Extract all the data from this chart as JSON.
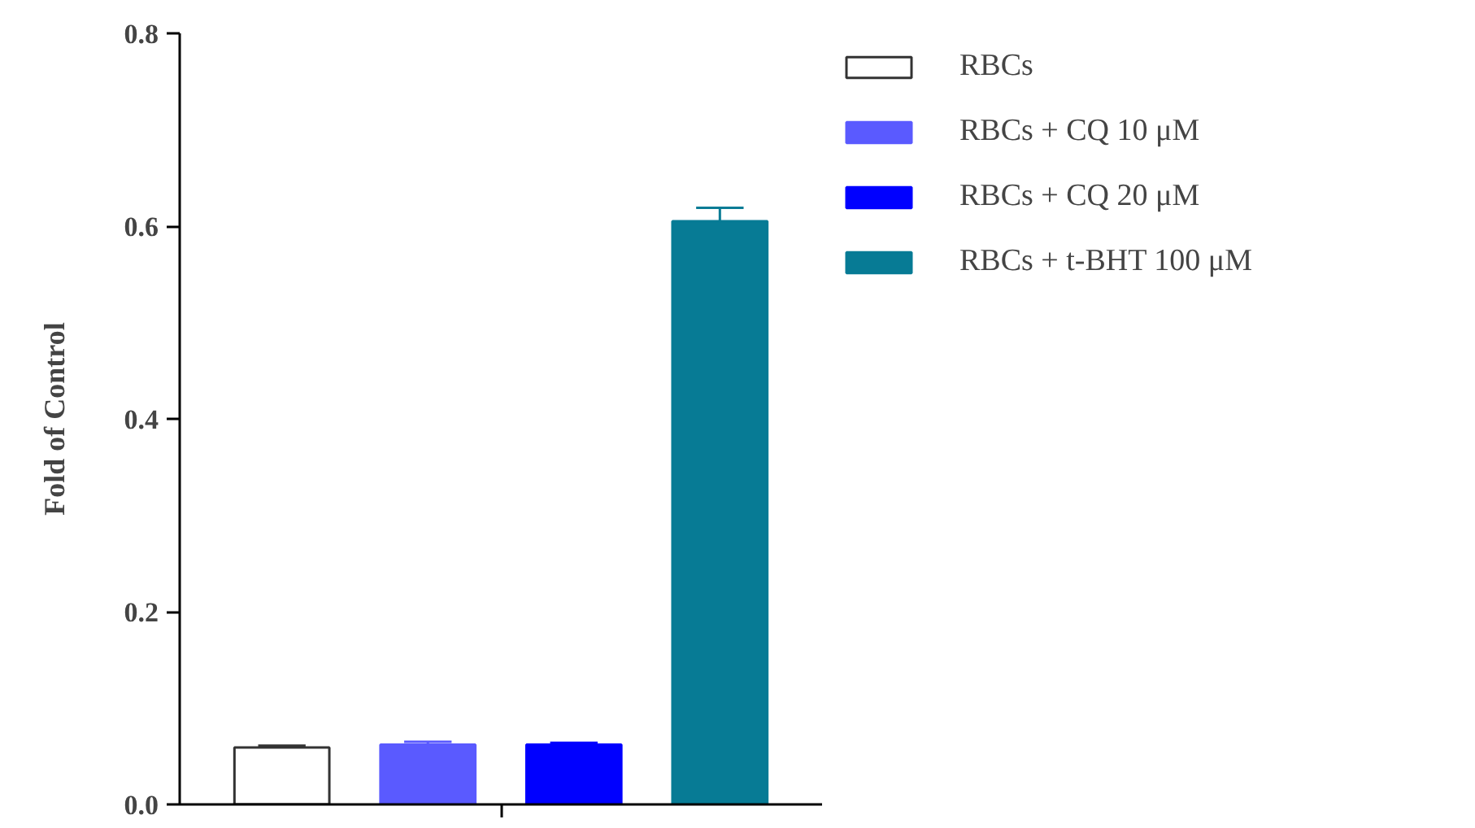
{
  "chart_data": {
    "type": "bar",
    "ylabel": "Fold of Control",
    "categories": [
      null
    ],
    "ylim": [
      0,
      0.8
    ],
    "yticks": [
      {
        "value": 0,
        "label": "0.0"
      },
      0.2,
      0.4,
      0.6,
      0.8
    ],
    "legend": "top right",
    "grid": false,
    "series": [
      {
        "name": "RBCs",
        "color": "#ffffff",
        "values": [
          0.059
        ],
        "errors": [
          0.002
        ]
      },
      {
        "name": "RBCs + CQ 10 μM",
        "color": "#5a5aff",
        "values": [
          0.062
        ],
        "errors": [
          0.003
        ]
      },
      {
        "name": "RBCs + CQ 20 μM",
        "color": "#0000ff",
        "values": [
          0.062
        ],
        "errors": [
          0.002
        ]
      },
      {
        "name": "RBCs + t-BHT 100 μM",
        "color": "#077b95",
        "values": [
          0.605
        ],
        "errors": [
          0.014
        ]
      }
    ]
  }
}
